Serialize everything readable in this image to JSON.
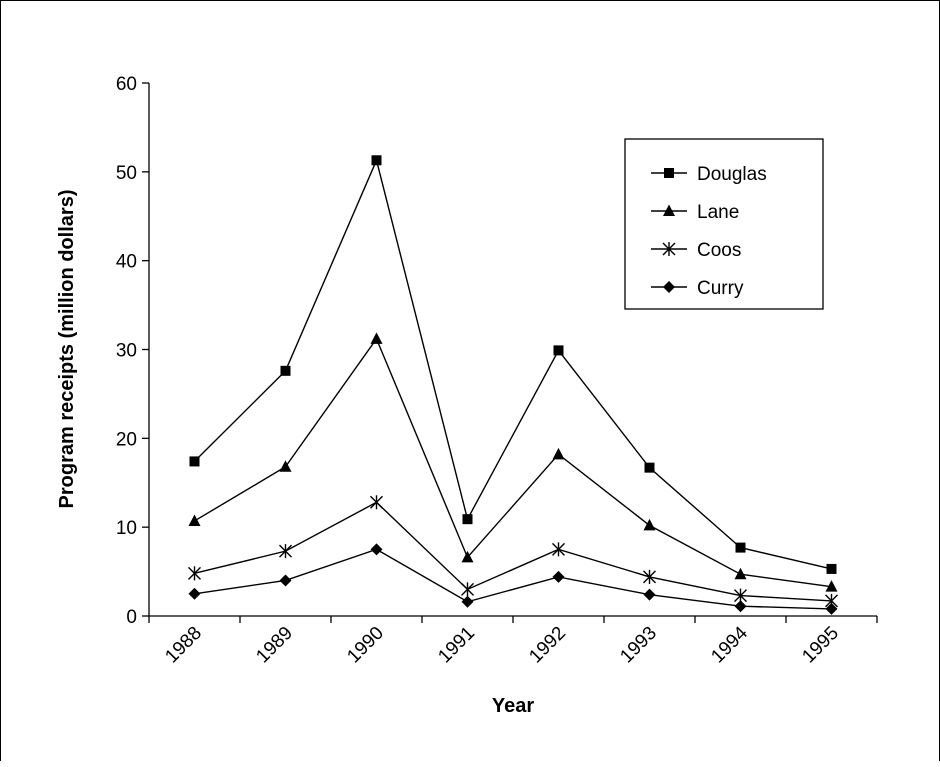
{
  "chart_data": {
    "type": "line",
    "title": "",
    "xlabel": "Year",
    "ylabel": "Program receipts (million dollars)",
    "x": [
      "1988",
      "1989",
      "1990",
      "1991",
      "1992",
      "1993",
      "1994",
      "1995"
    ],
    "ylim": [
      0,
      60
    ],
    "yticks": [
      0,
      10,
      20,
      30,
      40,
      50,
      60
    ],
    "ytick_labels": [
      "0",
      "10",
      "20",
      "30",
      "40",
      "50",
      "60"
    ],
    "grid": false,
    "legend_position": "top-right",
    "series": [
      {
        "name": "Douglas",
        "marker": "square",
        "values": [
          17.4,
          27.6,
          51.3,
          10.9,
          29.9,
          16.7,
          7.7,
          5.3
        ]
      },
      {
        "name": "Lane",
        "marker": "triangle",
        "values": [
          10.7,
          16.8,
          31.2,
          6.6,
          18.2,
          10.2,
          4.7,
          3.3
        ]
      },
      {
        "name": "Coos",
        "marker": "asterisk",
        "values": [
          4.8,
          7.3,
          12.8,
          3.0,
          7.5,
          4.4,
          2.3,
          1.7
        ]
      },
      {
        "name": "Curry",
        "marker": "diamond",
        "values": [
          2.5,
          4.0,
          7.5,
          1.6,
          4.4,
          2.4,
          1.1,
          0.8
        ]
      }
    ]
  }
}
